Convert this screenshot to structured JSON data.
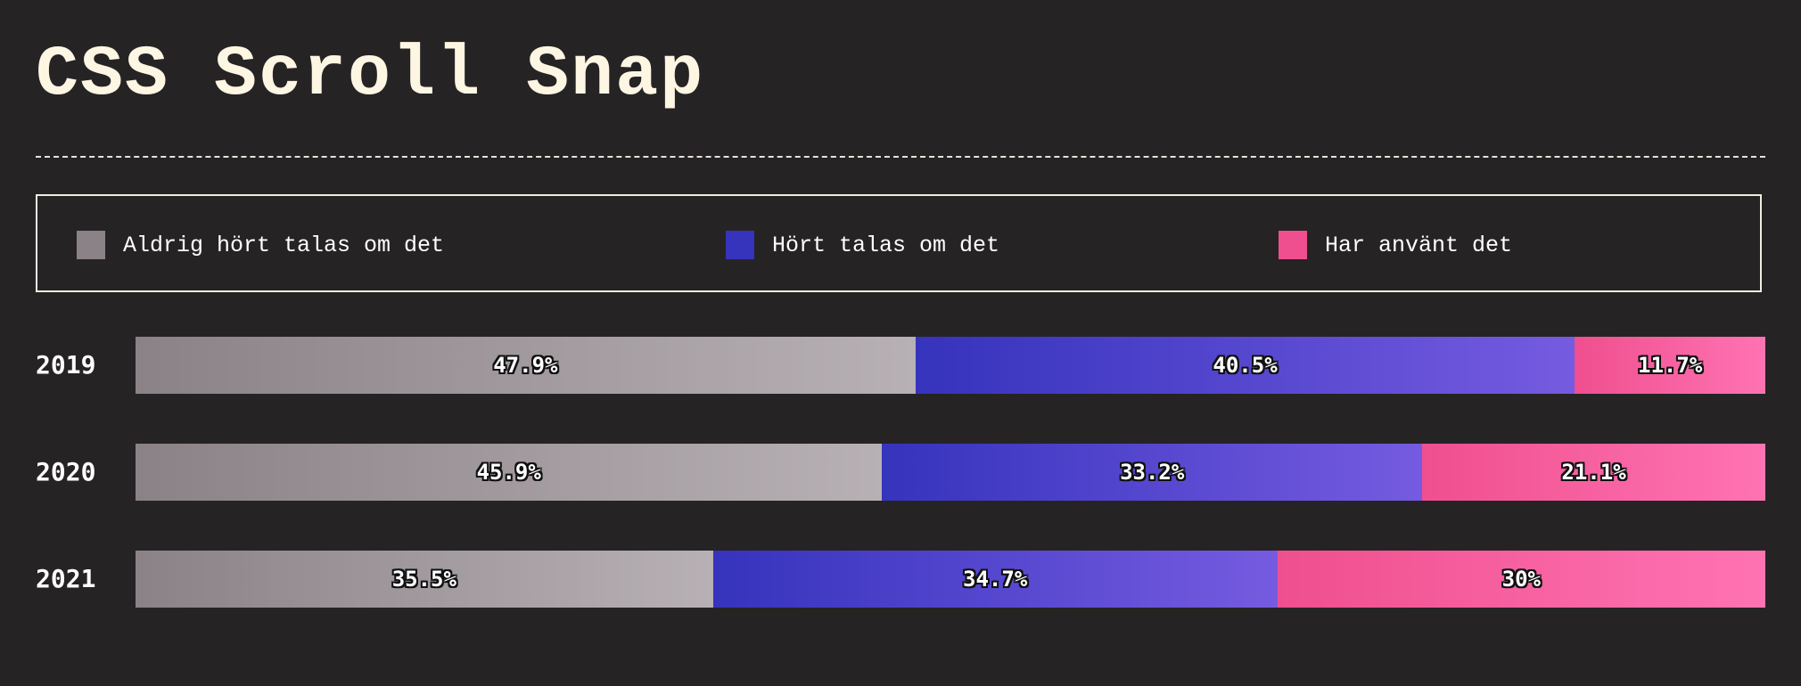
{
  "colors": {
    "background": "#262325",
    "title": "#fdf6e3",
    "never_heard": "#8a8286",
    "heard": "#3633bd",
    "used": "#ef4f8e"
  },
  "chart_data": {
    "type": "bar",
    "orientation": "horizontal",
    "stacked": true,
    "normalized_percent": true,
    "title": "CSS Scroll Snap",
    "xlabel": "",
    "ylabel": "",
    "categories": [
      "2019",
      "2020",
      "2021"
    ],
    "legend_position": "top",
    "grid": false,
    "series": [
      {
        "name": "Aldrig hört talas om det",
        "key": "never",
        "color": "#8a8286",
        "values": [
          47.9,
          45.9,
          35.5
        ],
        "labels": [
          "47.9%",
          "45.9%",
          "35.5%"
        ]
      },
      {
        "name": "Hört talas om det",
        "key": "heard",
        "color": "#3633bd",
        "values": [
          40.5,
          33.2,
          34.7
        ],
        "labels": [
          "40.5%",
          "33.2%",
          "34.7%"
        ]
      },
      {
        "name": "Har använt det",
        "key": "used",
        "color": "#ef4f8e",
        "values": [
          11.7,
          21.1,
          30
        ],
        "labels": [
          "11.7%",
          "21.1%",
          "30%"
        ]
      }
    ]
  }
}
